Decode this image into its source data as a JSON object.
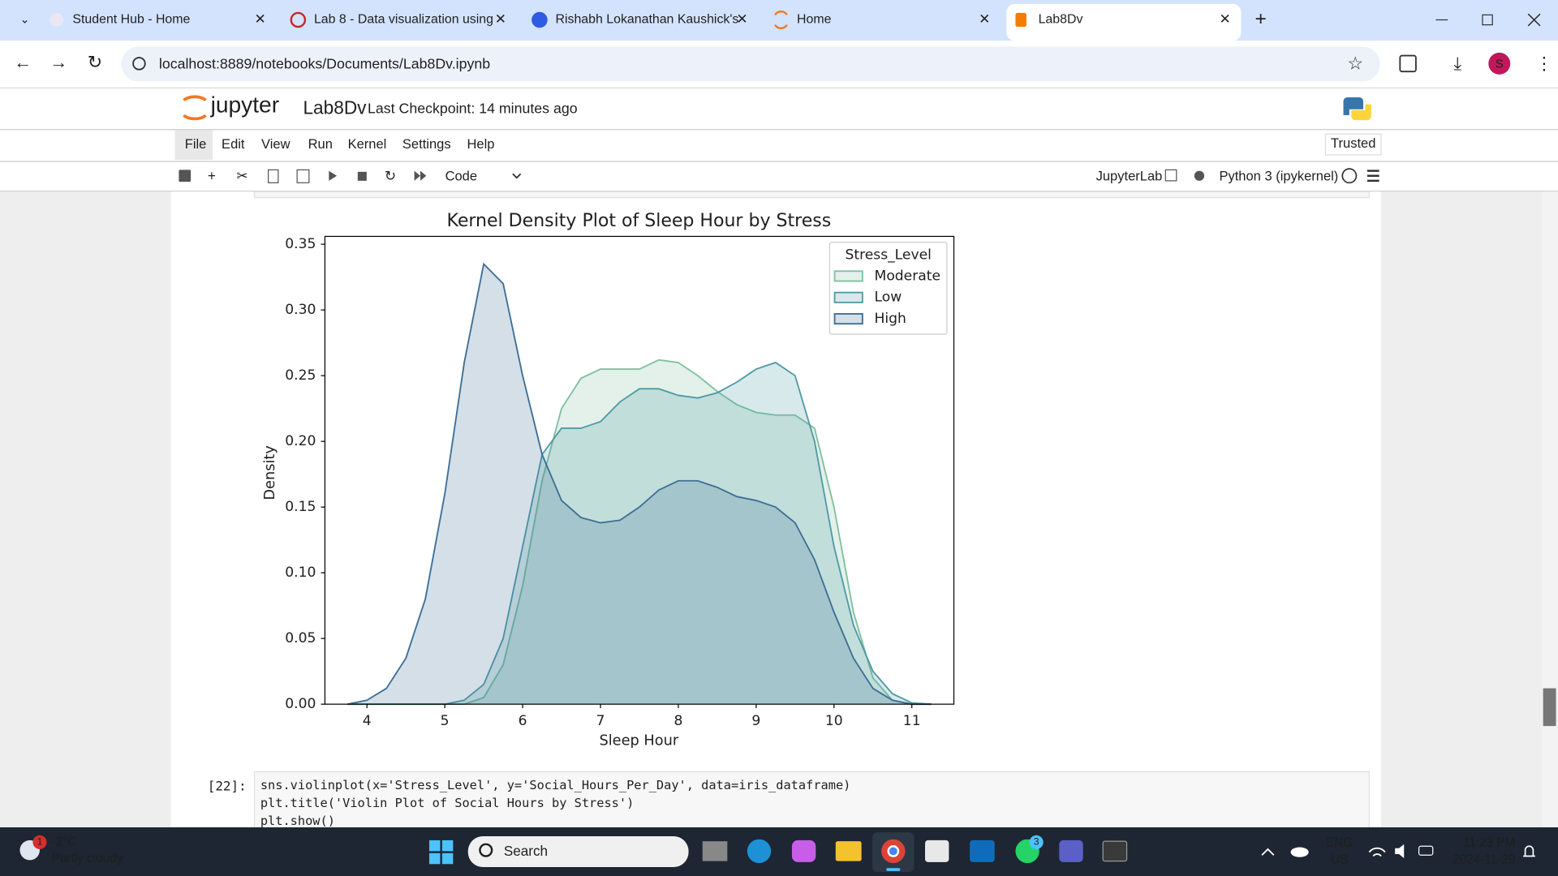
{
  "browser": {
    "tabs": [
      "Student Hub - Home",
      "Lab 8 - Data visualization using",
      "Rishabh Lokanathan Kaushick's",
      "Home",
      "Lab8Dv"
    ],
    "url": "localhost:8889/notebooks/Documents/Lab8Dv.ipynb",
    "profile": "S"
  },
  "notebook": {
    "logo": "jupyter",
    "name": "Lab8Dv",
    "checkpoint": "Last Checkpoint: 14 minutes ago",
    "menu": [
      "File",
      "Edit",
      "View",
      "Run",
      "Kernel",
      "Settings",
      "Help"
    ],
    "trusted": "Trusted",
    "cell_type": "Code",
    "jupyterlab": "JupyterLab",
    "kernel": "Python 3 (ipykernel)",
    "cell": {
      "prompt": "[22]:",
      "lines": [
        "sns.violinplot(x='Stress_Level', y='Social_Hours_Per_Day', data=iris_dataframe)",
        "plt.title('Violin Plot of Social Hours by Stress')",
        "plt.show()"
      ]
    }
  },
  "chart_data": {
    "type": "kde",
    "title": "Kernel Density Plot of Sleep Hour by Stress",
    "x_label": "Sleep Hour",
    "y_label": "Density",
    "x": [
      3.75,
      4.0,
      4.25,
      4.5,
      4.75,
      5.0,
      5.25,
      5.5,
      5.75,
      6.0,
      6.25,
      6.5,
      6.75,
      7.0,
      7.25,
      7.5,
      7.75,
      8.0,
      8.25,
      8.5,
      8.75,
      9.0,
      9.25,
      9.5,
      9.75,
      10.0,
      10.25,
      10.5,
      10.75,
      11.0,
      11.25
    ],
    "series": [
      {
        "name": "Moderate",
        "color": "#7fc0a0",
        "values": [
          0,
          0,
          0,
          0,
          0,
          0,
          0,
          0.005,
          0.03,
          0.09,
          0.17,
          0.225,
          0.248,
          0.255,
          0.255,
          0.255,
          0.262,
          0.26,
          0.25,
          0.238,
          0.228,
          0.222,
          0.22,
          0.22,
          0.21,
          0.15,
          0.07,
          0.02,
          0.003,
          0,
          0
        ]
      },
      {
        "name": "Low",
        "color": "#4f9aa5",
        "values": [
          0,
          0,
          0,
          0,
          0,
          0,
          0.003,
          0.015,
          0.05,
          0.12,
          0.19,
          0.21,
          0.21,
          0.215,
          0.23,
          0.24,
          0.24,
          0.235,
          0.233,
          0.237,
          0.245,
          0.255,
          0.26,
          0.25,
          0.2,
          0.12,
          0.06,
          0.025,
          0.008,
          0.001,
          0
        ]
      },
      {
        "name": "High",
        "color": "#3d6e96",
        "values": [
          0,
          0.003,
          0.012,
          0.035,
          0.08,
          0.16,
          0.26,
          0.335,
          0.32,
          0.25,
          0.19,
          0.155,
          0.142,
          0.138,
          0.14,
          0.15,
          0.163,
          0.17,
          0.17,
          0.165,
          0.158,
          0.155,
          0.15,
          0.138,
          0.11,
          0.07,
          0.035,
          0.012,
          0.003,
          0,
          0
        ]
      }
    ],
    "legend_title": "Stress_Level",
    "legend": "upper right",
    "fill_opacity": 0.22,
    "xlim": [
      3.46,
      11.54
    ],
    "ylim": [
      0,
      0.356
    ],
    "xticks": [
      4,
      5,
      6,
      7,
      8,
      9,
      10,
      11
    ],
    "yticks": [
      {
        "value": 0,
        "label": "0.00"
      },
      0.05,
      {
        "value": 0.1,
        "label": "0.10"
      },
      0.15,
      {
        "value": 0.2,
        "label": "0.20"
      },
      0.25,
      {
        "value": 0.3,
        "label": "0.30"
      },
      0.35
    ]
  },
  "taskbar": {
    "weather_badge": "1",
    "temperature": "-2°C",
    "weather": "Partly cloudy",
    "search": "Search",
    "teams_badge": "3",
    "language": "ENG",
    "region": "US",
    "time": "11:23 PM",
    "date": "2024-11-29"
  }
}
